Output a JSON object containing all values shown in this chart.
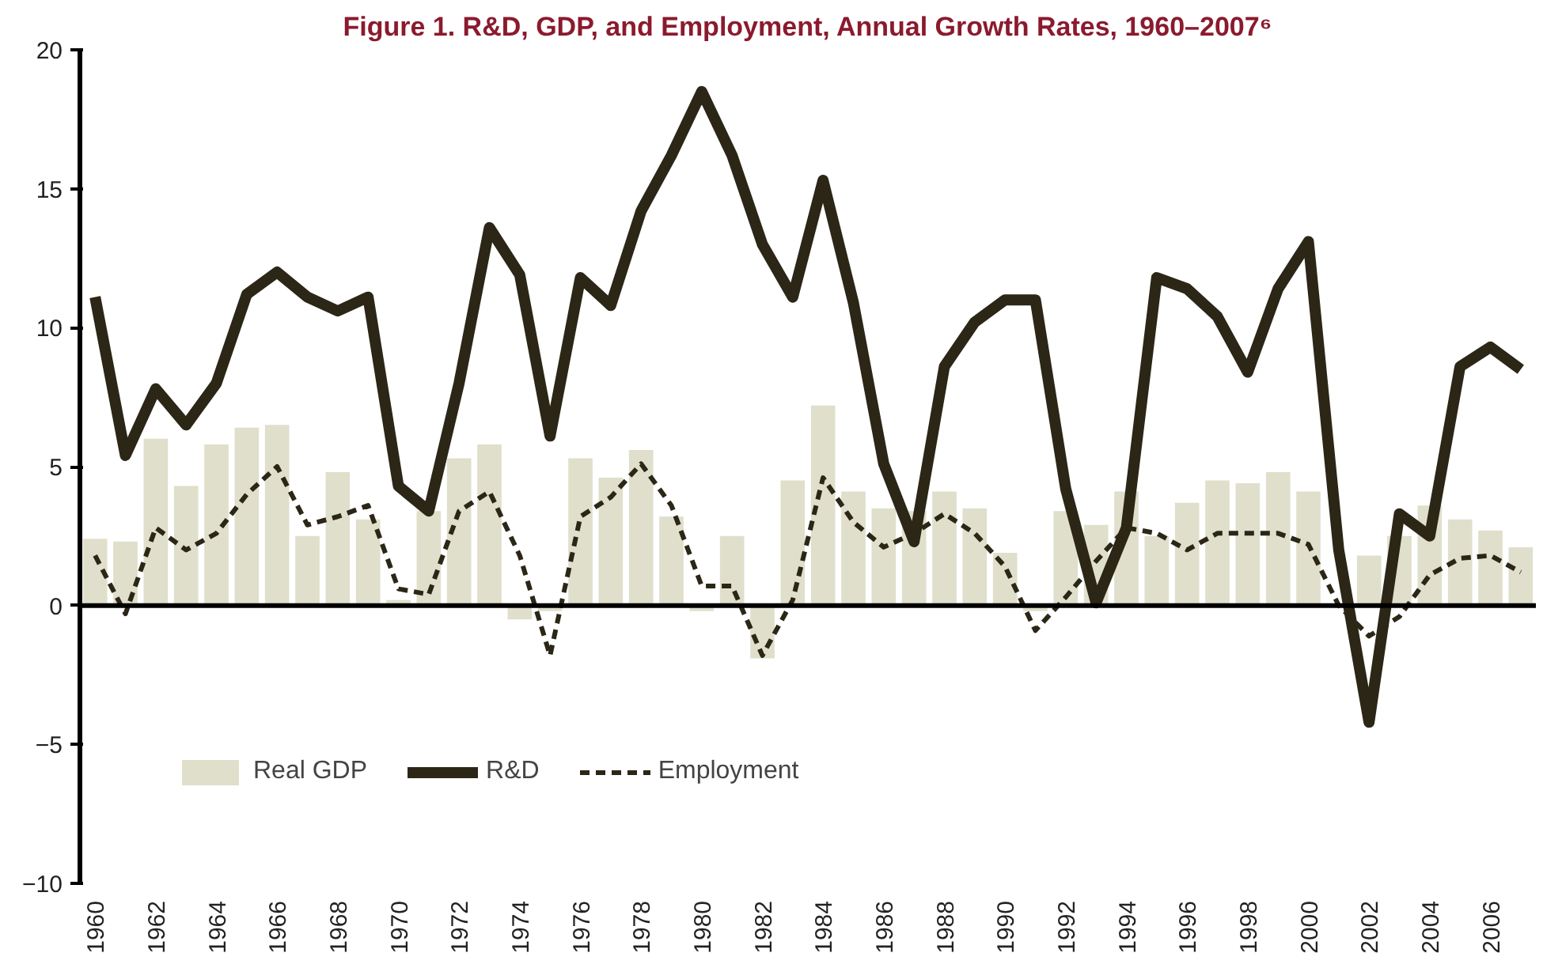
{
  "chart_data": {
    "type": "bar",
    "title": "Figure 1. R&D, GDP, and Employment, Annual Growth Rates, 1960–2007⁶",
    "x": [
      1960,
      1961,
      1962,
      1963,
      1964,
      1965,
      1966,
      1967,
      1968,
      1969,
      1970,
      1971,
      1972,
      1973,
      1974,
      1975,
      1976,
      1977,
      1978,
      1979,
      1980,
      1981,
      1982,
      1983,
      1984,
      1985,
      1986,
      1987,
      1988,
      1989,
      1990,
      1991,
      1992,
      1993,
      1994,
      1995,
      1996,
      1997,
      1998,
      1999,
      2000,
      2001,
      2002,
      2003,
      2004,
      2005,
      2006,
      2007
    ],
    "series": [
      {
        "name": "Real GDP",
        "color": "#e0dfcc",
        "values": [
          2.4,
          2.3,
          6.0,
          4.3,
          5.8,
          6.4,
          6.5,
          2.5,
          4.8,
          3.1,
          0.2,
          3.4,
          5.3,
          5.8,
          -0.5,
          -0.2,
          5.3,
          4.6,
          5.6,
          3.2,
          -0.2,
          2.5,
          -1.9,
          4.5,
          7.2,
          4.1,
          3.5,
          3.4,
          4.1,
          3.5,
          1.9,
          -0.2,
          3.4,
          2.9,
          4.1,
          2.5,
          3.7,
          4.5,
          4.4,
          4.8,
          4.1,
          null,
          1.8,
          2.5,
          3.6,
          3.1,
          2.7,
          2.1
        ]
      },
      {
        "name": "R&D",
        "type": "line",
        "color": "#2b2616",
        "line_style": "solid",
        "values": [
          11.1,
          5.4,
          7.8,
          6.5,
          8.0,
          11.2,
          12.0,
          11.1,
          10.6,
          11.1,
          4.3,
          3.4,
          8.0,
          13.6,
          11.9,
          6.1,
          11.8,
          10.8,
          14.2,
          16.2,
          18.5,
          16.2,
          13.0,
          11.1,
          15.3,
          10.9,
          5.1,
          2.3,
          8.6,
          10.2,
          11.0,
          11.0,
          4.2,
          0.1,
          2.8,
          11.8,
          11.4,
          10.4,
          8.4,
          11.4,
          13.1,
          2.0,
          -4.2,
          3.3,
          2.5,
          8.6,
          9.3,
          8.5
        ]
      },
      {
        "name": "Employment",
        "type": "line",
        "color": "#2b2616",
        "line_style": "dashed",
        "values": [
          1.8,
          -0.3,
          2.8,
          2.0,
          2.6,
          4.0,
          5.0,
          2.9,
          3.2,
          3.6,
          0.6,
          0.4,
          3.4,
          4.1,
          1.8,
          -1.8,
          3.2,
          3.9,
          5.1,
          3.6,
          0.7,
          0.7,
          -1.8,
          0.2,
          4.6,
          3.0,
          2.1,
          2.6,
          3.3,
          2.6,
          1.4,
          -0.9,
          0.3,
          1.6,
          2.8,
          2.6,
          2.0,
          2.6,
          2.6,
          2.6,
          2.2,
          0.0,
          -1.1,
          -0.4,
          1.1,
          1.7,
          1.8,
          1.2
        ]
      }
    ],
    "xlim": [
      1959.5,
      2007.5
    ],
    "xticks": [
      1960,
      1962,
      1964,
      1966,
      1968,
      1970,
      1972,
      1974,
      1976,
      1978,
      1980,
      1982,
      1984,
      1986,
      1988,
      1990,
      1992,
      1994,
      1996,
      1998,
      2000,
      2002,
      2004,
      2006
    ],
    "ylim": [
      -10,
      20
    ],
    "yticks": [
      -10,
      -5,
      0,
      5,
      10,
      15,
      20
    ],
    "ref_lines": [
      {
        "axis": "y",
        "value": 0,
        "color": "#000000"
      }
    ],
    "grid": false,
    "legend": "bottom left",
    "marker": "none"
  }
}
